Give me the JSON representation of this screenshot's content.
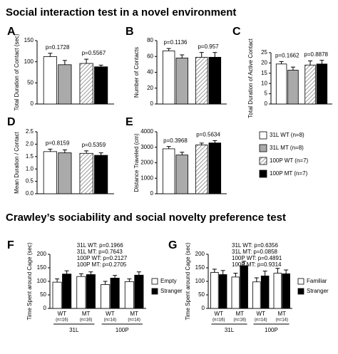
{
  "headings": [
    "Social interaction test in a novel environment",
    "Crawley’s sociability and social novelty preference test"
  ],
  "legend": {
    "entries": [
      {
        "name": "31L WT (n=8)",
        "color": "#ffffff",
        "hatch": false
      },
      {
        "name": "31L MT (n=8)",
        "color": "#aaaaaa",
        "hatch": false
      },
      {
        "name": "100P WT (n=7)",
        "color": "#ffffff",
        "hatch": true
      },
      {
        "name": "100P MT (n=7)",
        "color": "#000000",
        "hatch": false
      }
    ]
  },
  "chart_data": [
    {
      "type": "bar",
      "panel_label": "A",
      "ylabel": "Total Duration of Contact (sec)",
      "values": [
        112,
        93,
        96,
        88
      ],
      "errors": [
        8,
        10,
        10,
        4
      ],
      "pvalues": [
        "p=0.1728",
        "p=0.5567"
      ],
      "ylim": [
        0,
        150
      ],
      "yticks": [
        0,
        50,
        100,
        150
      ]
    },
    {
      "type": "bar",
      "panel_label": "B",
      "ylabel": "Number of Contacts",
      "values": [
        67,
        58,
        59,
        59
      ],
      "errors": [
        3,
        4,
        6,
        6
      ],
      "pvalues": [
        "p=0.1136",
        "p=0.957"
      ],
      "ylim": [
        0,
        80
      ],
      "yticks": [
        0,
        20,
        40,
        60,
        80
      ]
    },
    {
      "type": "bar",
      "panel_label": "C",
      "ylabel": "Total Duration of Active Contact",
      "values": [
        19.5,
        16.5,
        19,
        19.5
      ],
      "errors": [
        1.2,
        1.5,
        2,
        1.8
      ],
      "pvalues": [
        "p=0.1662",
        "p=0.8878"
      ],
      "ylim": [
        0,
        25
      ],
      "yticks": [
        0,
        5,
        10,
        15,
        20,
        25
      ]
    },
    {
      "type": "bar",
      "panel_label": "D",
      "ylabel": "Mean Duration / Contact",
      "values": [
        1.7,
        1.65,
        1.63,
        1.55
      ],
      "errors": [
        0.1,
        0.12,
        0.1,
        0.1
      ],
      "pvalues": [
        "p=0.8159",
        "p=0.5359"
      ],
      "ylim": [
        0,
        2.5
      ],
      "yticks": [
        {
          "value": 0,
          "label": "0.0"
        },
        0.5,
        {
          "value": 1,
          "label": "1.0"
        },
        1.5,
        {
          "value": 2,
          "label": "2.0"
        },
        2.5
      ]
    },
    {
      "type": "bar",
      "panel_label": "E",
      "ylabel": "Distance Traveled (cm)",
      "values": [
        2900,
        2500,
        3150,
        3280
      ],
      "errors": [
        150,
        180,
        120,
        150
      ],
      "pvalues": [
        "p=0.3968",
        "p=0.5634"
      ],
      "ylim": [
        0,
        4000
      ],
      "yticks": [
        0,
        1000,
        2000,
        3000,
        4000
      ]
    },
    {
      "type": "grouped",
      "panel_label": "F",
      "ylabel": "Time Spent around Cage (sec)",
      "categories": [
        "WT",
        "MT",
        "WT",
        "MT"
      ],
      "category_notes": [
        "(n=16)",
        "(n=16)",
        "(n=14)",
        "(n=14)"
      ],
      "groups": [
        "31L",
        "100P"
      ],
      "series": [
        {
          "name": "Empty",
          "color": "#ffffff",
          "values": [
            97,
            118,
            88,
            99
          ],
          "errors": [
            12,
            10,
            12,
            10
          ]
        },
        {
          "name": "Stranger",
          "color": "#000000",
          "values": [
            127,
            125,
            112,
            123
          ],
          "errors": [
            12,
            10,
            10,
            12
          ]
        }
      ],
      "annotations": [
        "31L WT: p=0.1966",
        "31L MT: p=0.7643",
        "100P WT: p=0.2127",
        "100P MT: p=0.2705"
      ],
      "ylim": [
        0,
        200
      ],
      "yticks": [
        0,
        50,
        100,
        150,
        200
      ]
    },
    {
      "type": "grouped",
      "panel_label": "G",
      "ylabel": "Time Spent around Cage (sec)",
      "categories": [
        "WT",
        "MT",
        "WT",
        "MT"
      ],
      "category_notes": [
        "(n=16)",
        "(n=16)",
        "(n=14)",
        "(n=14)"
      ],
      "groups": [
        "31L",
        "100P"
      ],
      "series": [
        {
          "name": "Familiar",
          "color": "#ffffff",
          "values": [
            133,
            116,
            98,
            130
          ],
          "errors": [
            12,
            14,
            15,
            18
          ]
        },
        {
          "name": "Stranger",
          "color": "#000000",
          "values": [
            125,
            158,
            120,
            128
          ],
          "errors": [
            15,
            16,
            18,
            14
          ]
        }
      ],
      "annotations": [
        "31L WT: p=0.6356",
        "31L MT: p=0.0858",
        "100P WT: p=0.4891",
        "100P MT: p=0.9314"
      ],
      "ylim": [
        0,
        200
      ],
      "yticks": [
        0,
        50,
        100,
        150,
        200
      ]
    }
  ]
}
